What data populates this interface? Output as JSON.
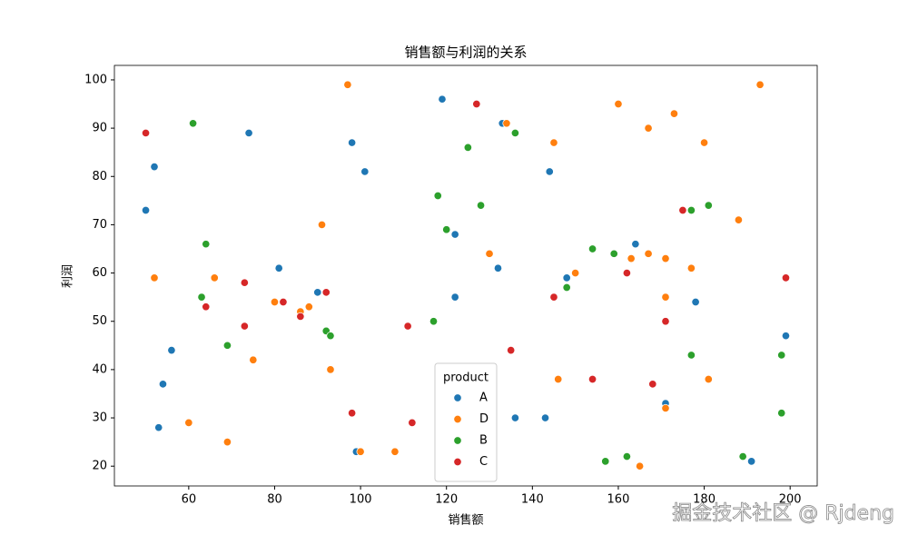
{
  "chart_data": {
    "type": "scatter",
    "title": "销售额与利润的关系",
    "x_label": "销售额",
    "y_label": "利润",
    "legend_title": "product",
    "legend_position": "lower center",
    "grid": false,
    "xlim": [
      42.7,
      206.3
    ],
    "ylim": [
      15.9,
      103.0
    ],
    "xticks": [
      60,
      80,
      100,
      120,
      140,
      160,
      180,
      200
    ],
    "yticks": [
      20,
      30,
      40,
      50,
      60,
      70,
      80,
      90,
      100
    ],
    "series": [
      {
        "name": "A",
        "color": "#1f77b4",
        "x": [
          50,
          52,
          74,
          56,
          54,
          53,
          81,
          90,
          98,
          101,
          99,
          119,
          122,
          122,
          132,
          133,
          136,
          144,
          143,
          148,
          164,
          178,
          171,
          199,
          191
        ],
        "values": [
          73,
          82,
          89,
          44,
          37,
          28,
          61,
          56,
          87,
          81,
          23,
          96,
          68,
          55,
          61,
          91,
          30,
          81,
          30,
          59,
          66,
          54,
          33,
          47,
          21
        ]
      },
      {
        "name": "D",
        "color": "#ff7f0e",
        "x": [
          97,
          52,
          60,
          69,
          66,
          75,
          80,
          86,
          88,
          91,
          93,
          100,
          108,
          130,
          134,
          145,
          146,
          150,
          160,
          163,
          167,
          167,
          173,
          171,
          171,
          177,
          180,
          181,
          171,
          165,
          188,
          193
        ],
        "values": [
          99,
          59,
          29,
          25,
          59,
          42,
          54,
          52,
          53,
          70,
          40,
          23,
          23,
          64,
          91,
          87,
          38,
          60,
          95,
          63,
          90,
          64,
          93,
          63,
          55,
          61,
          87,
          38,
          32,
          20,
          71,
          99
        ]
      },
      {
        "name": "B",
        "color": "#2ca02c",
        "x": [
          61,
          64,
          63,
          69,
          92,
          93,
          118,
          120,
          125,
          128,
          136,
          117,
          148,
          154,
          159,
          157,
          162,
          177,
          181,
          177,
          189,
          198,
          198
        ],
        "values": [
          91,
          66,
          55,
          45,
          48,
          47,
          76,
          69,
          86,
          74,
          89,
          50,
          57,
          65,
          64,
          21,
          22,
          73,
          74,
          43,
          22,
          43,
          31
        ]
      },
      {
        "name": "C",
        "color": "#d62728",
        "x": [
          50,
          64,
          73,
          73,
          82,
          86,
          92,
          98,
          111,
          112,
          127,
          135,
          145,
          154,
          162,
          168,
          171,
          175,
          199
        ],
        "values": [
          89,
          53,
          58,
          49,
          54,
          51,
          56,
          31,
          49,
          29,
          95,
          44,
          55,
          38,
          60,
          37,
          50,
          73,
          59
        ]
      }
    ]
  },
  "watermark": "掘金技术社区 @ Rjdeng"
}
